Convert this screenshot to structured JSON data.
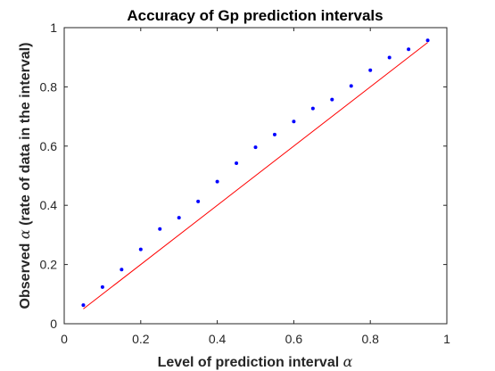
{
  "chart_data": {
    "type": "scatter",
    "title": "Accuracy of Gp prediction intervals",
    "xlabel_text": "Level of prediction interval ",
    "xlabel_symbol": "α",
    "ylabel_text_before": "Observed ",
    "ylabel_symbol": "α",
    "ylabel_text_after": " (rate of data in the interval)",
    "xlim": [
      0,
      1
    ],
    "ylim": [
      0,
      1
    ],
    "xticks": [
      0,
      0.2,
      0.4,
      0.6,
      0.8,
      1
    ],
    "yticks": [
      0,
      0.2,
      0.4,
      0.6,
      0.8,
      1
    ],
    "xtick_labels": [
      "0",
      "0.2",
      "0.4",
      "0.6",
      "0.8",
      "1"
    ],
    "ytick_labels": [
      "0",
      "0.2",
      "0.4",
      "0.6",
      "0.8",
      "1"
    ],
    "grid": false,
    "series": [
      {
        "style": "points",
        "color": "#0000ff",
        "x": [
          0.05,
          0.1,
          0.15,
          0.2,
          0.25,
          0.3,
          0.35,
          0.4,
          0.45,
          0.5,
          0.55,
          0.6,
          0.65,
          0.7,
          0.75,
          0.8,
          0.85,
          0.9,
          0.95
        ],
        "y": [
          0.063,
          0.124,
          0.183,
          0.251,
          0.32,
          0.358,
          0.413,
          0.48,
          0.542,
          0.596,
          0.639,
          0.683,
          0.727,
          0.757,
          0.803,
          0.856,
          0.899,
          0.927,
          0.957
        ]
      },
      {
        "style": "line",
        "color": "#ff0000",
        "x": [
          0.05,
          0.95
        ],
        "y": [
          0.05,
          0.95
        ]
      }
    ]
  }
}
